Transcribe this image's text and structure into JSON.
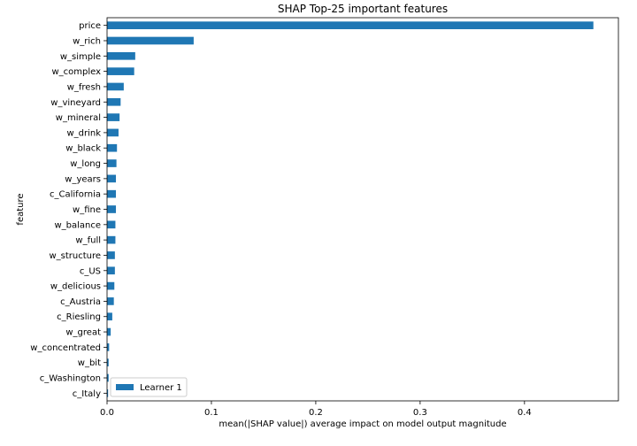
{
  "chart_data": {
    "type": "bar",
    "orientation": "horizontal",
    "title": "SHAP Top-25 important features",
    "xlabel": "mean(|SHAP value|) average impact on model output magnitude",
    "ylabel": "feature",
    "xlim": [
      0,
      0.49
    ],
    "xticks": [
      0,
      0.1,
      0.2,
      0.3,
      0.4
    ],
    "xtick_labels": [
      "0.0",
      "0.1",
      "0.2",
      "0.3",
      "0.4"
    ],
    "grid": false,
    "legend_position": "bottom-left",
    "categories": [
      "price",
      "w_rich",
      "w_simple",
      "w_complex",
      "w_fresh",
      "w_vineyard",
      "w_mineral",
      "w_drink",
      "w_black",
      "w_long",
      "w_years",
      "c_California",
      "w_fine",
      "w_balance",
      "w_full",
      "w_structure",
      "c_US",
      "w_delicious",
      "c_Austria",
      "c_Riesling",
      "w_great",
      "w_concentrated",
      "w_bit",
      "c_Washington",
      "c_Italy"
    ],
    "series": [
      {
        "name": "Learner 1",
        "color": "#1f77b4",
        "values": [
          0.466,
          0.083,
          0.027,
          0.026,
          0.016,
          0.013,
          0.012,
          0.011,
          0.0095,
          0.009,
          0.0085,
          0.0085,
          0.0085,
          0.008,
          0.008,
          0.0075,
          0.0075,
          0.007,
          0.0065,
          0.005,
          0.0035,
          0.002,
          0.0015,
          0.0015,
          0.001
        ]
      }
    ]
  }
}
